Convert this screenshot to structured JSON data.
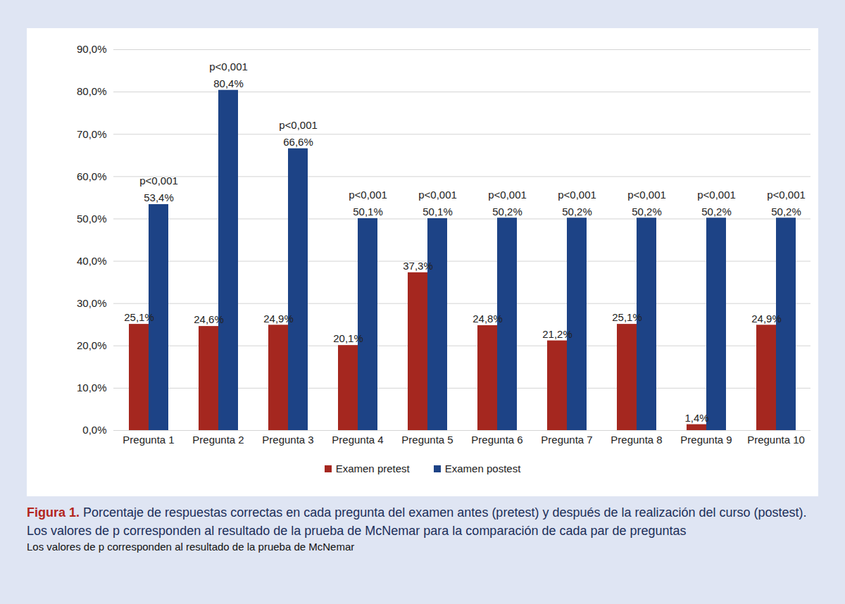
{
  "chart_data": {
    "type": "bar",
    "title": "Figura 1.",
    "subtitle": "Porcentaje de respuestas correctas en cada pregunta del examen antes (pretest) y después de la realización del curso (postest). Los valores de p corresponden al resultado de la prueba de McNemar para la comparación de cada par de preguntas",
    "note": "Los valores de p corresponden al resultado de la prueba de McNemar",
    "categories": [
      "Pregunta 1",
      "Pregunta 2",
      "Pregunta 3",
      "Pregunta 4",
      "Pregunta 5",
      "Pregunta 6",
      "Pregunta 7",
      "Pregunta 8",
      "Pregunta 9",
      "Pregunta 10"
    ],
    "series": [
      {
        "name": "Examen pretest",
        "color": "#a5271f",
        "values": [
          25.1,
          24.6,
          24.9,
          20.1,
          37.3,
          24.8,
          21.2,
          25.1,
          1.4,
          24.9
        ],
        "value_labels": [
          "25,1%",
          "24,6%",
          "24,9%",
          "20,1%",
          "37,3%",
          "24,8%",
          "21,2%",
          "25,1%",
          "1,4%",
          "24,9%"
        ]
      },
      {
        "name": "Examen postest",
        "color": "#1d4386",
        "values": [
          53.4,
          80.4,
          66.6,
          50.1,
          50.1,
          50.2,
          50.2,
          50.2,
          50.2,
          50.2
        ],
        "value_labels": [
          "53,4%",
          "80,4%",
          "66,6%",
          "50,1%",
          "50,1%",
          "50,2%",
          "50,2%",
          "50,2%",
          "50,2%",
          "50,2%"
        ],
        "annotations": [
          "p<0,001",
          "p<0,001",
          "p<0,001",
          "p<0,001",
          "p<0,001",
          "p<0,001",
          "p<0,001",
          "p<0,001",
          "p<0,001",
          "p<0,001"
        ]
      }
    ],
    "ylim": [
      0,
      90
    ],
    "yticks": [
      {
        "value": 0,
        "label": "0,0%"
      },
      {
        "value": 10,
        "label": "10,0%"
      },
      {
        "value": 20,
        "label": "20,0%"
      },
      {
        "value": 30,
        "label": "30,0%"
      },
      {
        "value": 40,
        "label": "40,0%"
      },
      {
        "value": 50,
        "label": "50,0%"
      },
      {
        "value": 60,
        "label": "60,0%"
      },
      {
        "value": 70,
        "label": "70,0%"
      },
      {
        "value": 80,
        "label": "80,0%"
      },
      {
        "value": 90,
        "label": "90,0%"
      }
    ],
    "grid": true,
    "legend": "bottom",
    "data_labels": true
  }
}
